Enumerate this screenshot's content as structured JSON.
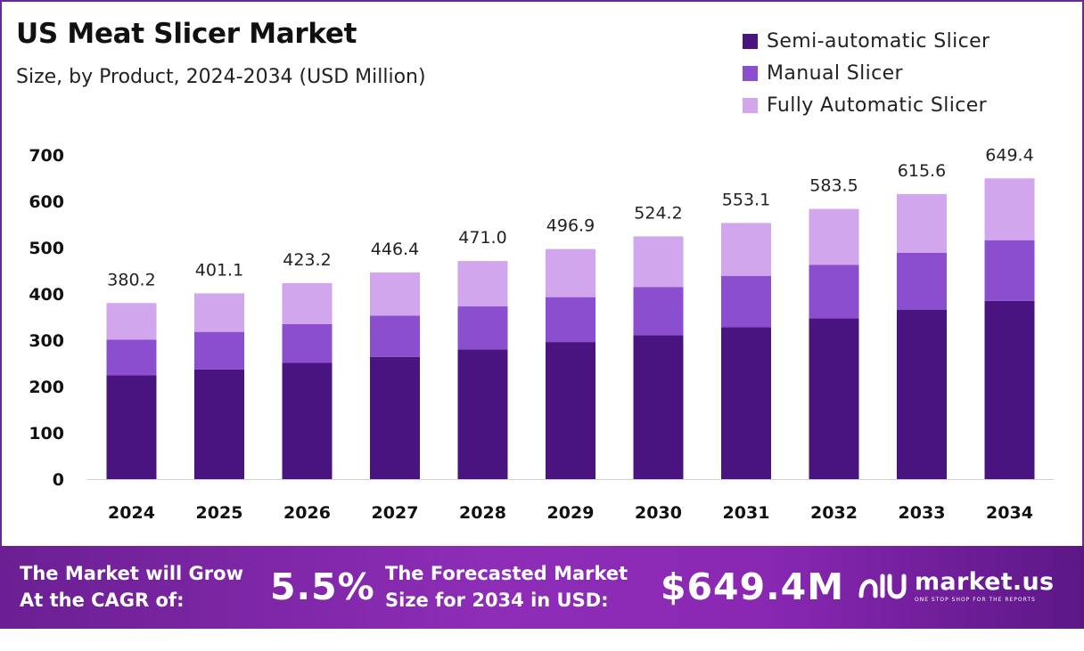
{
  "header": {
    "title": "US Meat Slicer Market",
    "subtitle": "Size, by Product, 2024-2034 (USD Million)"
  },
  "legend": [
    {
      "label": "Semi-automatic Slicer",
      "color": "#4a1480"
    },
    {
      "label": "Manual Slicer",
      "color": "#8b4ecf"
    },
    {
      "label": "Fully Automatic Slicer",
      "color": "#d1a6ec"
    }
  ],
  "chart_data": {
    "type": "bar",
    "stacked": true,
    "title": "US Meat Slicer Market",
    "subtitle": "Size, by Product, 2024-2034 (USD Million)",
    "categories": [
      "2024",
      "2025",
      "2026",
      "2027",
      "2028",
      "2029",
      "2030",
      "2031",
      "2032",
      "2033",
      "2034"
    ],
    "series": [
      {
        "name": "Semi-automatic Slicer",
        "color": "#4a1480",
        "values": [
          224,
          237,
          251,
          264,
          280,
          296,
          311,
          328,
          347,
          366,
          385
        ]
      },
      {
        "name": "Manual Slicer",
        "color": "#8b4ecf",
        "values": [
          77,
          81,
          84,
          89,
          93,
          97,
          104,
          111,
          116,
          123,
          131
        ]
      },
      {
        "name": "Fully Automatic Slicer",
        "color": "#d1a6ec",
        "values": [
          79.2,
          83.1,
          88.2,
          93.4,
          98.0,
          103.9,
          109.2,
          114.1,
          120.5,
          126.6,
          133.4
        ]
      }
    ],
    "totals": [
      "380.2",
      "401.1",
      "423.2",
      "446.4",
      "471.0",
      "496.9",
      "524.2",
      "553.1",
      "583.5",
      "615.6",
      "649.4"
    ],
    "yticks": [
      "0",
      "100",
      "200",
      "300",
      "400",
      "500",
      "600",
      "700"
    ],
    "ylim": [
      0,
      700
    ],
    "xlabel": "",
    "ylabel": "",
    "grid": false,
    "legend_position": "top-right"
  },
  "footer": {
    "cagr_label_line1": "The Market will Grow",
    "cagr_label_line2": "At the CAGR of:",
    "cagr_value": "5.5%",
    "forecast_label_line1": "The Forecasted Market",
    "forecast_label_line2": "Size for 2034 in USD:",
    "forecast_value": "$649.4M",
    "brand_name": "market.us",
    "brand_tagline": "ONE STOP SHOP FOR THE REPORTS"
  }
}
